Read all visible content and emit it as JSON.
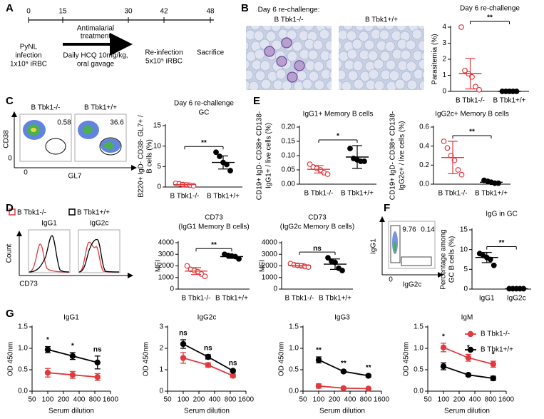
{
  "panel_letters": [
    "A",
    "B",
    "C",
    "D",
    "E",
    "F",
    "G"
  ],
  "timeline": {
    "days": [
      0,
      15,
      30,
      42,
      48
    ],
    "treatment": [
      "Antimalarial",
      "treatment"
    ],
    "infection": [
      "PyNL",
      "infection",
      "1x10⁵ iRBC"
    ],
    "dosing": [
      "Daily HCQ 10mg/kg,",
      "oral gavage"
    ],
    "reinfection": [
      "Re-infection",
      "5x10⁵ iRBC"
    ],
    "end": "Sacrifice"
  },
  "micrographs": {
    "heading": "Day 6 re-challenge:",
    "labels": [
      "B Tbk1-/-",
      "B Tbk1+/+"
    ]
  },
  "flow_C": {
    "labels": [
      "B Tbk1-/-",
      "B Tbk1+/+"
    ],
    "gates": [
      0.58,
      36.6
    ],
    "y_axis": "CD38",
    "x_axis": "GL7",
    "zero": 0
  },
  "histograms_D": {
    "legend": [
      "B Tbk1-/-",
      "B Tbk1+/+"
    ],
    "panels": [
      "IgG1",
      "IgG2c"
    ],
    "y_axis": "Count",
    "x_axis": "CD73"
  },
  "flow_F": {
    "gates": [
      9.76,
      0.14
    ],
    "y_axis": "IgG1",
    "x_axis": "IgG2c",
    "zero": 0
  },
  "chart_data": [
    {
      "type": "dot",
      "title": "Day 6 re-challenge",
      "ylabel": [
        "Parasitemia (%)"
      ],
      "ylim": [
        0,
        4
      ],
      "yticks": [
        0,
        1,
        2,
        3,
        4
      ],
      "groups": [
        {
          "name": "B Tbk1-/-",
          "color": "#e03a3e",
          "filled": false,
          "values": [
            4.0,
            1.3,
            1.1,
            0.9,
            0.3,
            0.1
          ],
          "mean": 1.1,
          "error": 0.95
        },
        {
          "name": "B Tbk1+/+",
          "color": "#000000",
          "filled": true,
          "values": [
            0,
            0,
            0,
            0,
            0
          ],
          "mean": 0,
          "error": 0
        }
      ],
      "significance": "**"
    },
    {
      "type": "dot",
      "title": "Day 6 re-challenge",
      "subtitle": "GC",
      "ylabel": [
        "B220+ IgD- CD38- GL7+ /",
        "B cells (%)"
      ],
      "ylim": [
        0,
        15
      ],
      "yticks": [
        0,
        5,
        10,
        15
      ],
      "groups": [
        {
          "name": "B Tbk1-/-",
          "color": "#e03a3e",
          "filled": false,
          "values": [
            0.9,
            0.8,
            0.6,
            0.5,
            0.4,
            0.3
          ],
          "mean": 0.6,
          "error": 0.4
        },
        {
          "name": "B Tbk1+/+",
          "color": "#000000",
          "filled": true,
          "values": [
            8.5,
            7.5,
            6.0,
            5.5,
            4.0
          ],
          "mean": 6.0,
          "error": 1.6
        }
      ],
      "significance": "**"
    },
    {
      "type": "dot",
      "title": "IgG1+ Memory B cells",
      "ylabel": [
        "CD19+ IgD- CD38+ CD138-",
        "IgG1+ / live cells (%)"
      ],
      "ylim": [
        0,
        0.2
      ],
      "yticks": [
        {
          "value": 0,
          "label": "0.00"
        },
        0.05,
        {
          "value": 0.1,
          "label": "0.10"
        },
        0.15,
        {
          "value": 0.2,
          "label": "0.20"
        }
      ],
      "groups": [
        {
          "name": "B Tbk1-/-",
          "color": "#e03a3e",
          "filled": false,
          "values": [
            0.07,
            0.06,
            0.055,
            0.05,
            0.04,
            0.035
          ],
          "mean": 0.052,
          "error": 0.013
        },
        {
          "name": "B Tbk1+/+",
          "color": "#000000",
          "filled": true,
          "values": [
            0.125,
            0.09,
            0.085,
            0.08,
            0.08
          ],
          "mean": 0.095,
          "error": 0.04
        }
      ],
      "significance": "*"
    },
    {
      "type": "dot",
      "title": "IgG2c+ Memory B cells",
      "ylabel": [
        "CD19+ IgD- CD38+ CD138-",
        "IgG2c+ / live cells (%)"
      ],
      "ylim": [
        0,
        0.6
      ],
      "yticks": [
        {
          "value": 0,
          "label": "0.0"
        },
        0.2,
        0.4,
        0.6
      ],
      "groups": [
        {
          "name": "B Tbk1-/-",
          "color": "#e03a3e",
          "filled": false,
          "values": [
            0.45,
            0.38,
            0.3,
            0.25,
            0.15,
            0.1
          ],
          "mean": 0.28,
          "error": 0.17
        },
        {
          "name": "B Tbk1+/+",
          "color": "#000000",
          "filled": true,
          "values": [
            0.04,
            0.03,
            0.02,
            0.01,
            0.01
          ],
          "mean": 0.02,
          "error": 0.01
        }
      ],
      "significance": "**"
    },
    {
      "type": "dot",
      "title": "CD73",
      "subtitle": "(IgG1 Memory B cells)",
      "ylabel": [
        "MFI"
      ],
      "ylim": [
        0,
        4000
      ],
      "yticks": [
        0,
        1000,
        2000,
        3000,
        4000
      ],
      "groups": [
        {
          "name": "B Tbk1-/-",
          "color": "#e03a3e",
          "filled": false,
          "values": [
            2000,
            1700,
            1600,
            1500,
            1300,
            1100
          ],
          "mean": 1550,
          "error": 300
        },
        {
          "name": "B Tbk1+/+",
          "color": "#000000",
          "filled": true,
          "values": [
            3000,
            2900,
            2850,
            2800,
            2600
          ],
          "mean": 2800,
          "error": 150
        }
      ],
      "significance": "**"
    },
    {
      "type": "dot",
      "title": "CD73",
      "subtitle": "(IgG2c Memory B cells)",
      "ylabel": [
        "MFI"
      ],
      "ylim": [
        0,
        4000
      ],
      "yticks": [
        0,
        1000,
        2000,
        3000,
        4000
      ],
      "groups": [
        {
          "name": "B Tbk1-/-",
          "color": "#e03a3e",
          "filled": false,
          "values": [
            2200,
            2100,
            2050,
            2000,
            1950,
            1900
          ],
          "mean": 2050,
          "error": 150
        },
        {
          "name": "B Tbk1+/+",
          "color": "#000000",
          "filled": true,
          "values": [
            2700,
            2400,
            2300,
            1800,
            1600
          ],
          "mean": 2150,
          "error": 450
        }
      ],
      "significance": "ns"
    },
    {
      "type": "dot",
      "title": "IgG in GC",
      "ylabel": [
        "Percentage among",
        "GC B cells (%)"
      ],
      "ylim": [
        0,
        15
      ],
      "yticks": [
        0,
        5,
        10,
        15
      ],
      "groups": [
        {
          "name": "IgG1",
          "color": "#000000",
          "filled": true,
          "values": [
            9.0,
            8.5,
            8.0,
            7.5,
            6.0
          ],
          "mean": 8.0,
          "error": 1.3
        },
        {
          "name": "IgG2c",
          "color": "#000000",
          "filled": true,
          "values": [
            0.1,
            0.1,
            0.1,
            0.1,
            0.1
          ],
          "mean": 0.1,
          "error": 0.05
        }
      ],
      "significance": "**"
    },
    {
      "type": "line",
      "title": "IgG1",
      "ylabel": "OD 450nm",
      "xlabel": "Serum dilution",
      "log_x": true,
      "x": [
        100,
        300,
        900
      ],
      "xlim": [
        50,
        1600
      ],
      "xticks": [
        50,
        100,
        200,
        400,
        800,
        1600
      ],
      "ylim": [
        0,
        1.5
      ],
      "yticks": [
        {
          "value": 0,
          "label": "0.0"
        },
        0.5,
        {
          "value": 1,
          "label": "1.0"
        },
        1.5
      ],
      "series": [
        {
          "color": "#e03a3e",
          "values": [
            0.43,
            0.38,
            0.33
          ],
          "errors": [
            0.1,
            0.08,
            0.08
          ]
        },
        {
          "color": "#000000",
          "values": [
            0.97,
            0.82,
            0.67
          ],
          "errors": [
            0.07,
            0.08,
            0.15
          ]
        }
      ],
      "significance": [
        "*",
        "*",
        "ns"
      ]
    },
    {
      "type": "line",
      "title": "IgG2c",
      "ylabel": "OD 450nm",
      "xlabel": "Serum dilution",
      "log_x": true,
      "x": [
        100,
        300,
        900
      ],
      "xlim": [
        50,
        1600
      ],
      "xticks": [
        50,
        100,
        200,
        400,
        800,
        1600
      ],
      "ylim": [
        0,
        3
      ],
      "yticks": [
        0,
        1,
        2,
        3
      ],
      "series": [
        {
          "color": "#e03a3e",
          "values": [
            1.55,
            1.22,
            0.72
          ],
          "errors": [
            0.25,
            0.1,
            0.08
          ]
        },
        {
          "color": "#000000",
          "values": [
            2.2,
            1.6,
            0.95
          ],
          "errors": [
            0.2,
            0.1,
            0.05
          ]
        }
      ],
      "significance": [
        "ns",
        "ns",
        "ns"
      ]
    },
    {
      "type": "line",
      "title": "IgG3",
      "ylabel": "OD 450nm",
      "xlabel": "Serum dilution",
      "log_x": true,
      "x": [
        100,
        300,
        900
      ],
      "xlim": [
        50,
        1600
      ],
      "xticks": [
        50,
        100,
        200,
        400,
        800,
        1600
      ],
      "ylim": [
        0,
        1.5
      ],
      "yticks": [
        {
          "value": 0,
          "label": "0.0"
        },
        0.5,
        {
          "value": 1,
          "label": "1.0"
        },
        1.5
      ],
      "series": [
        {
          "color": "#e03a3e",
          "values": [
            0.12,
            0.07,
            0.06
          ],
          "errors": [
            0.05,
            0.02,
            0.01
          ]
        },
        {
          "color": "#000000",
          "values": [
            0.73,
            0.46,
            0.36
          ],
          "errors": [
            0.07,
            0.03,
            0.03
          ]
        }
      ],
      "significance": [
        "**",
        "**",
        "**"
      ]
    },
    {
      "type": "line",
      "title": "IgM",
      "ylabel": "OD 450nm",
      "xlabel": "Serum dilution",
      "log_x": true,
      "x": [
        100,
        300,
        900
      ],
      "xlim": [
        50,
        1600
      ],
      "xticks": [
        50,
        100,
        200,
        400,
        800,
        1600
      ],
      "ylim": [
        0,
        1.5
      ],
      "yticks": [
        {
          "value": 0,
          "label": "0.0"
        },
        0.5,
        {
          "value": 1,
          "label": "1.0"
        },
        1.5
      ],
      "legend": "upper right",
      "series": [
        {
          "name": "B Tbk1-/-",
          "color": "#e03a3e",
          "values": [
            1.02,
            0.78,
            0.63
          ],
          "errors": [
            0.1,
            0.08,
            0.07
          ]
        },
        {
          "name": "B Tbk1+/+",
          "color": "#000000",
          "values": [
            0.58,
            0.38,
            0.3
          ],
          "errors": [
            0.08,
            0.03,
            0.05
          ]
        }
      ],
      "significance": [
        "*",
        "*",
        "*"
      ]
    }
  ]
}
